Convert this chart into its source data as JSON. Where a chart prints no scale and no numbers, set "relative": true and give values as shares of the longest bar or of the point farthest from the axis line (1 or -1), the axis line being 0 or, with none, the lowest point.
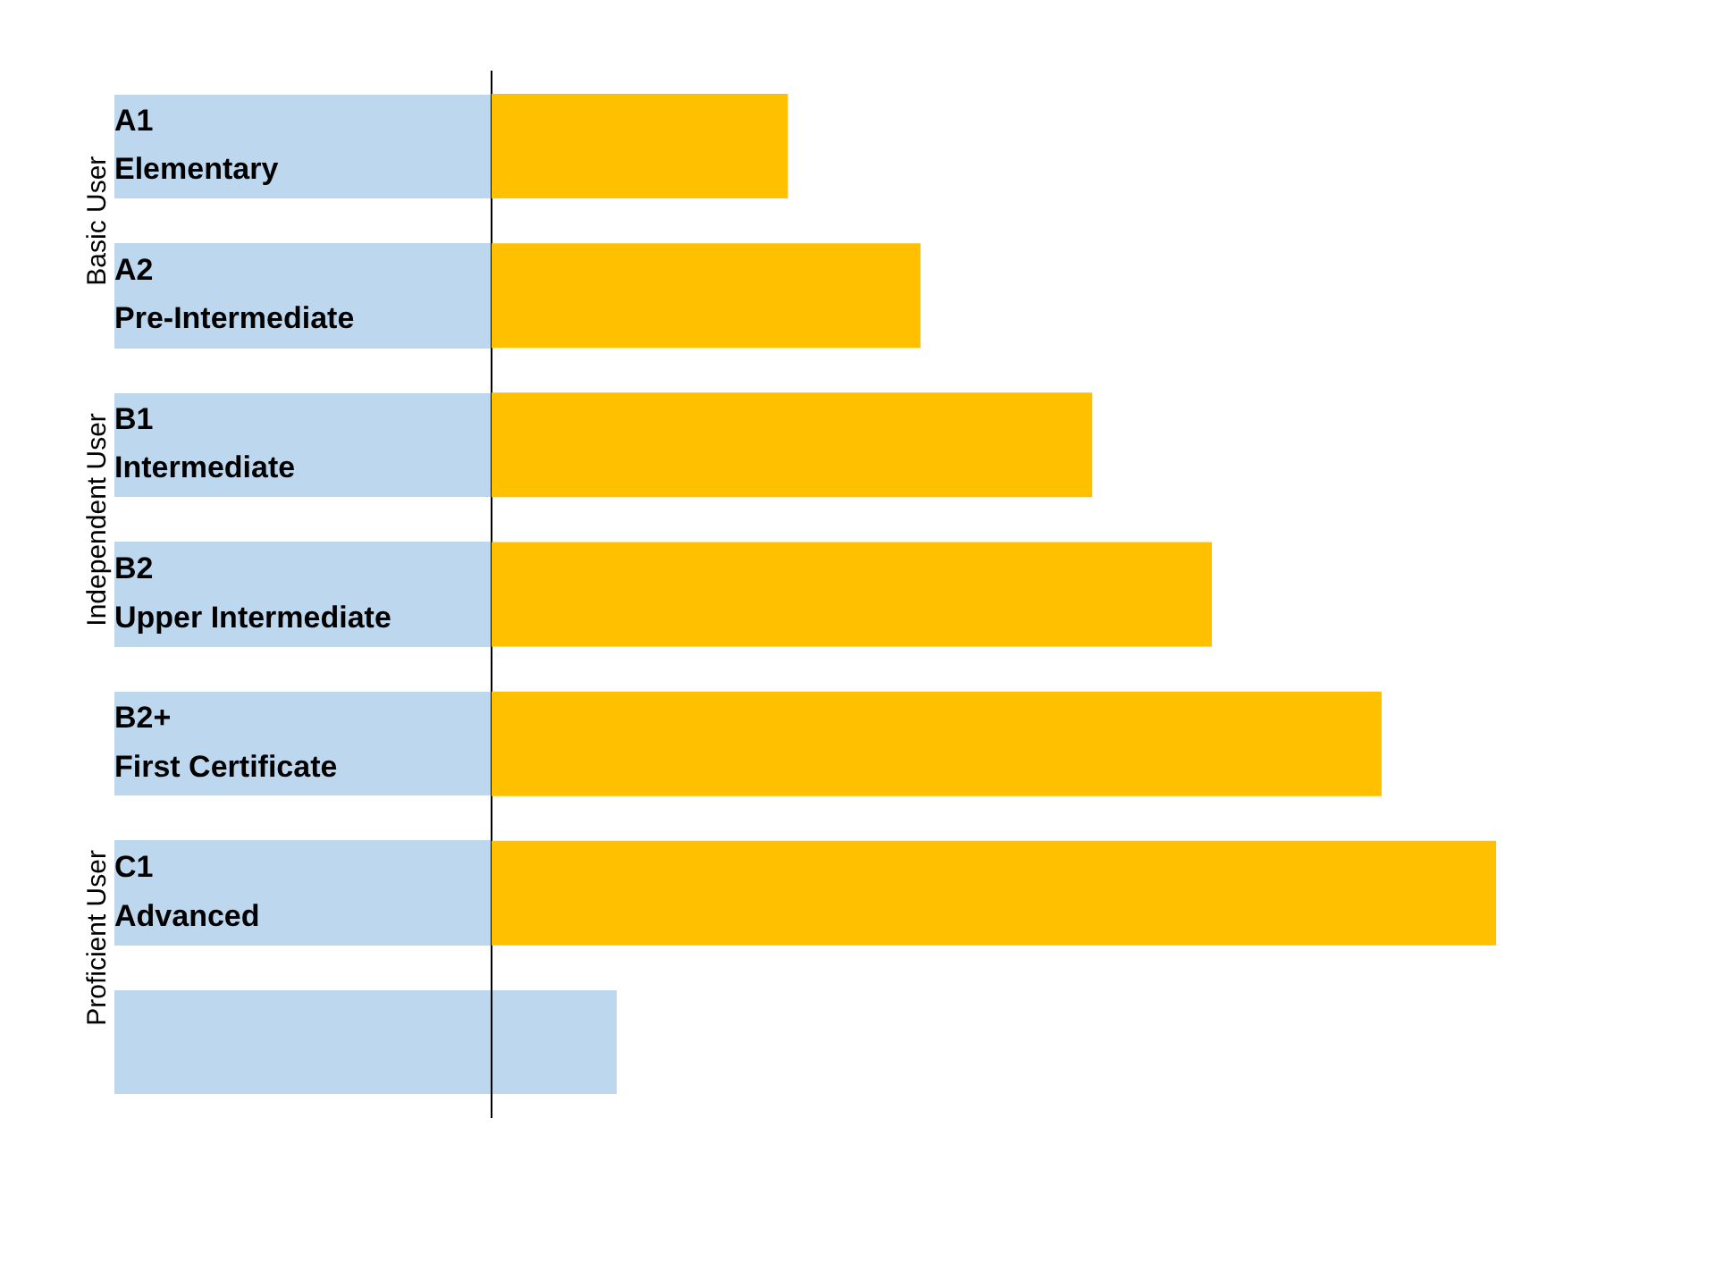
{
  "chart_data": {
    "type": "bar",
    "orientation": "horizontal",
    "relative": true,
    "legend": false,
    "categories": [
      "A1\nElementary",
      "A2\nPre-Intermediate",
      "B1\nIntermediate",
      "B2\nUpper Intermediate",
      "B2+\nFirst Certificate",
      "C1\nAdvanced",
      null
    ],
    "values": [
      0.295,
      0.427,
      0.598,
      0.717,
      0.886,
      1,
      null
    ],
    "color": "#ffc000",
    "annotations": [
      "Basic User",
      "Independent User",
      "Proficient User"
    ]
  }
}
